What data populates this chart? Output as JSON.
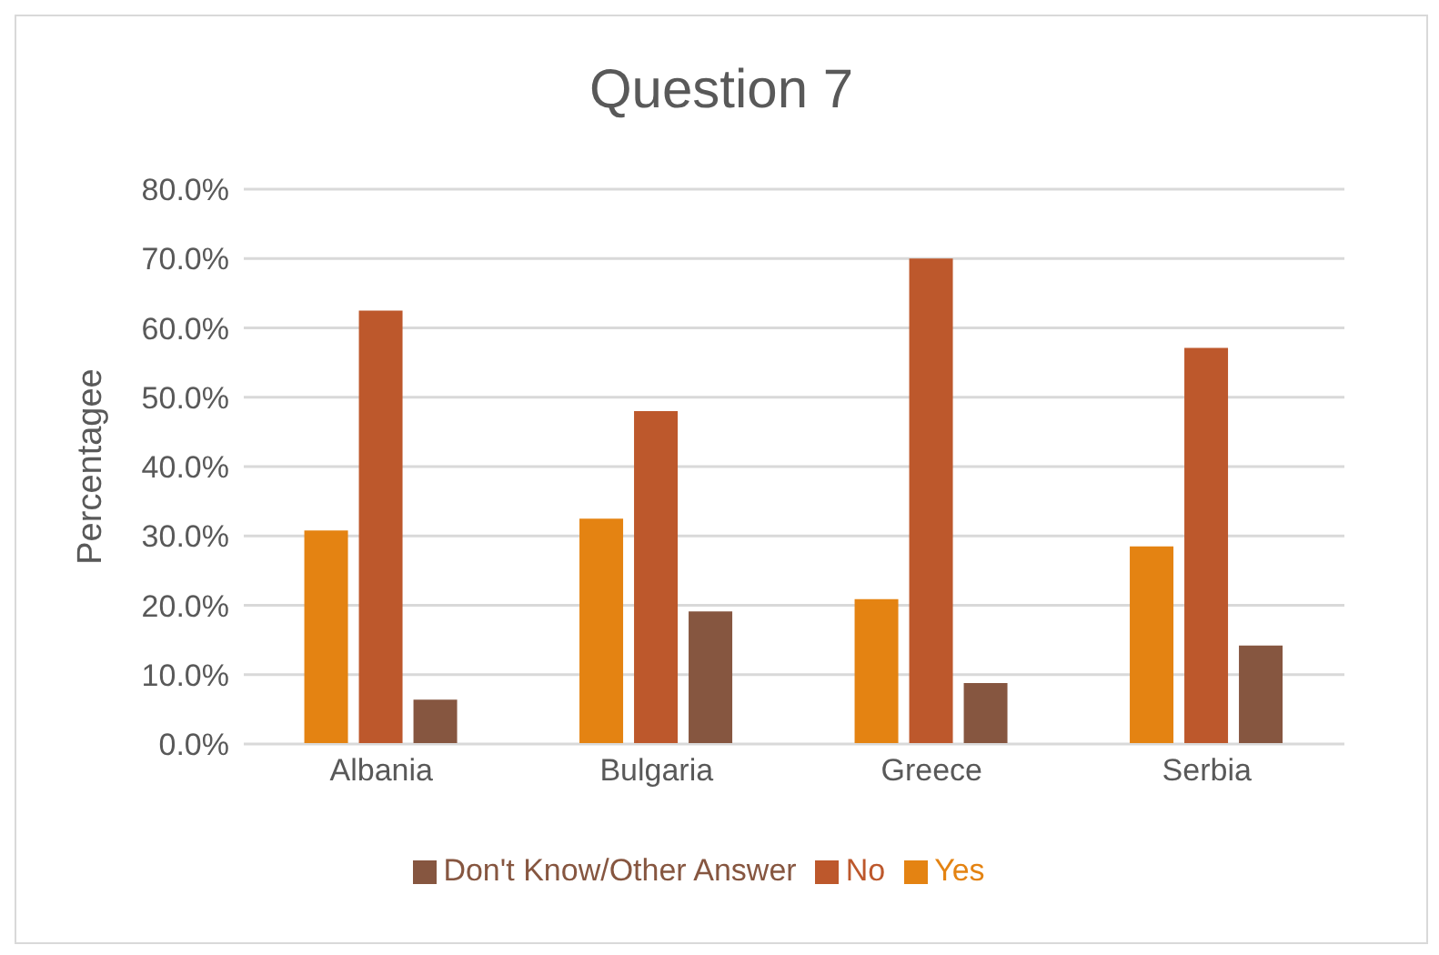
{
  "chart_data": {
    "type": "bar",
    "title": "Question 7",
    "ylabel": "Percentagee",
    "categories": [
      "Albania",
      "Bulgaria",
      "Greece",
      "Serbia"
    ],
    "series": [
      {
        "name": "Yes",
        "color": "#e48312",
        "values": [
          30.8,
          32.5,
          20.9,
          28.5
        ]
      },
      {
        "name": "No",
        "color": "#bd582c",
        "values": [
          62.5,
          48.0,
          70.0,
          57.1
        ]
      },
      {
        "name": "Don't Know/Other Answer",
        "color": "#865640",
        "values": [
          6.4,
          19.1,
          8.8,
          14.2
        ]
      }
    ],
    "ylim": [
      0,
      80
    ],
    "yticks": [
      {
        "value": 0,
        "label": "0.0%"
      },
      {
        "value": 10,
        "label": "10.0%"
      },
      {
        "value": 20,
        "label": "20.0%"
      },
      {
        "value": 30,
        "label": "30.0%"
      },
      {
        "value": 40,
        "label": "40.0%"
      },
      {
        "value": 50,
        "label": "50.0%"
      },
      {
        "value": 60,
        "label": "60.0%"
      },
      {
        "value": 70,
        "label": "70.0%"
      },
      {
        "value": 80,
        "label": "80.0%"
      }
    ],
    "grid": "y",
    "legend": "bottom"
  }
}
